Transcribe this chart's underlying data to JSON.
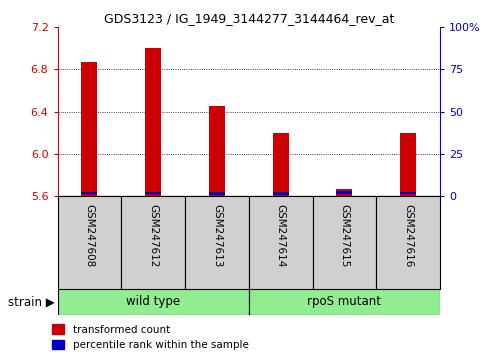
{
  "title": "GDS3123 / IG_1949_3144277_3144464_rev_at",
  "samples": [
    "GSM247608",
    "GSM247612",
    "GSM247613",
    "GSM247614",
    "GSM247615",
    "GSM247616"
  ],
  "red_values": [
    6.87,
    7.0,
    6.45,
    6.2,
    5.67,
    6.2
  ],
  "blue_values": [
    5.635,
    5.635,
    5.628,
    5.628,
    5.638,
    5.63
  ],
  "ymin": 5.6,
  "ymax": 7.2,
  "yticks_left": [
    5.6,
    6.0,
    6.4,
    6.8,
    7.2
  ],
  "yticks_right_vals": [
    0,
    25,
    50,
    75,
    100
  ],
  "yticks_right_labels": [
    "0",
    "25",
    "50",
    "75",
    "100%"
  ],
  "sample_bg_color": "#D0D0D0",
  "bar_width": 0.25,
  "red_color": "#CC0000",
  "blue_color": "#0000CC",
  "legend_labels": [
    "transformed count",
    "percentile rank within the sample"
  ],
  "strain_label": "strain",
  "green_color": "#90EE90"
}
